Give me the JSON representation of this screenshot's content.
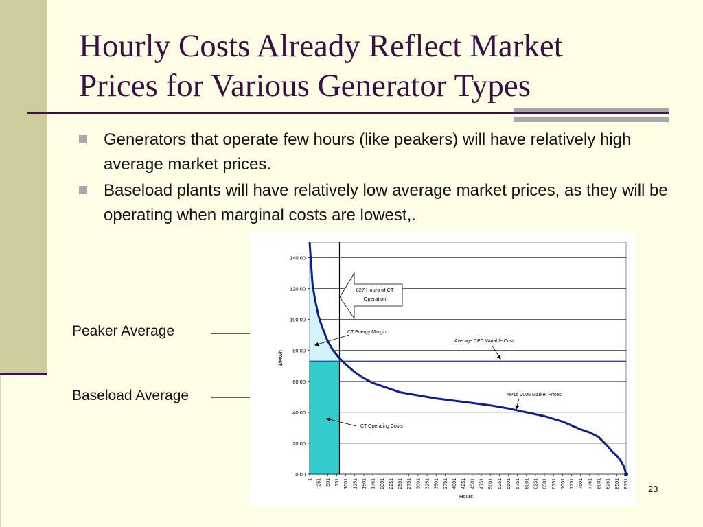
{
  "slide": {
    "title_line1": "Hourly Costs Already Reflect Market",
    "title_line2": "Prices for Various Generator Types",
    "bullets": [
      "Generators that operate few hours (like peakers) will have relatively high average market prices.",
      "Baseload plants will have relatively low average market prices, as they will be operating when marginal costs are lowest,."
    ],
    "slide_number": "23",
    "colors": {
      "background": "#fefee6",
      "title": "#3b0f3f",
      "curve": "#0d1f8c",
      "variable_cost_line": "#3344cc",
      "peaker_fill": "#d4f4fb",
      "baseload_fill": "#33cccc"
    }
  },
  "external_labels": {
    "peaker": "Peaker Average",
    "baseload": "Baseload Average"
  },
  "chart_data": {
    "type": "line",
    "title": "",
    "xlabel": "Hours",
    "ylabel": "$/MWh",
    "ylim": [
      0,
      150
    ],
    "xlim": [
      1,
      8760
    ],
    "y_ticks": [
      "0.00",
      "20.00",
      "40.00",
      "60.00",
      "80.00",
      "100.00",
      "120.00",
      "140.00"
    ],
    "x_ticks": [
      "1",
      "251",
      "501",
      "751",
      "1001",
      "1251",
      "1501",
      "1751",
      "2001",
      "2251",
      "2501",
      "2751",
      "3001",
      "3251",
      "3501",
      "3751",
      "4001",
      "4251",
      "4501",
      "4751",
      "5001",
      "5251",
      "5501",
      "5751",
      "6001",
      "6251",
      "6501",
      "6751",
      "7001",
      "7251",
      "7501",
      "7751",
      "8001",
      "8251",
      "8501",
      "8751"
    ],
    "grid": true,
    "series": [
      {
        "name": "NP15 2005 Market Prices",
        "x": [
          1,
          30,
          80,
          150,
          250,
          350,
          500,
          650,
          827,
          1000,
          1250,
          1500,
          1750,
          2000,
          2500,
          3000,
          3500,
          4000,
          4500,
          5000,
          5500,
          6000,
          6500,
          7000,
          7500,
          7750,
          8000,
          8250,
          8400,
          8500,
          8600,
          8700,
          8760
        ],
        "values": [
          150,
          140,
          123,
          113,
          102,
          95,
          86,
          80,
          75,
          71,
          66,
          62,
          59,
          57,
          53,
          51,
          49,
          47.5,
          46,
          44.5,
          42.5,
          40,
          37.5,
          34,
          29,
          27,
          24,
          18,
          14,
          12,
          9,
          5,
          0
        ]
      }
    ],
    "reference_lines": [
      {
        "name": "Average CEC Variable Cost",
        "y": 73
      }
    ],
    "ct_hours_marker": 827,
    "ct_operating_cost": 73,
    "annotations": {
      "ct_hours": "827 Hours of CT Operation",
      "ct_energy_margin": "CT Energy Margin",
      "avg_cec_cost": "Average CEC Variable Cost",
      "market_prices": "NP15 2005 Market Prices",
      "ct_operating_costs": "CT Operating Costs"
    }
  }
}
